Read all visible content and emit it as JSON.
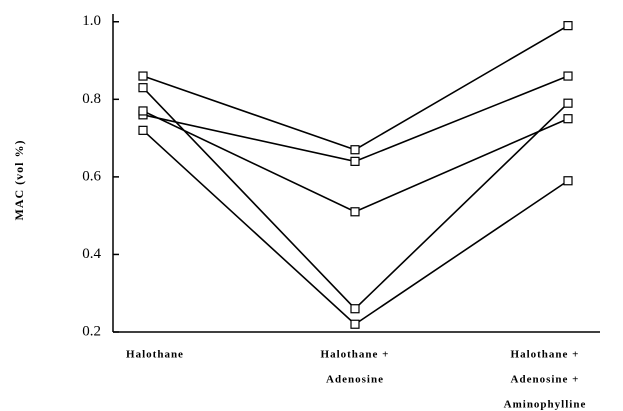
{
  "chart_data": {
    "type": "line",
    "y_label": "MAC (vol %)",
    "categories": [
      [
        "Halothane"
      ],
      [
        "Halothane +",
        "Adenosine"
      ],
      [
        "Halothane +",
        "Adenosine +",
        "Aminophylline"
      ]
    ],
    "series": [
      {
        "color": "#000000",
        "values": [
          0.86,
          0.67,
          0.99
        ]
      },
      {
        "color": "#000000",
        "values": [
          0.76,
          0.64,
          0.86
        ]
      },
      {
        "color": "#000000",
        "values": [
          0.77,
          0.51,
          0.75
        ]
      },
      {
        "color": "#000000",
        "values": [
          0.83,
          0.26,
          0.79
        ]
      },
      {
        "color": "#000000",
        "values": [
          0.72,
          0.22,
          0.59
        ]
      }
    ],
    "ylim": [
      0.2,
      1.02
    ],
    "yticks": [
      0.2,
      0.4,
      0.6,
      0.8,
      {
        "value": 1,
        "label": "1.0"
      }
    ]
  }
}
